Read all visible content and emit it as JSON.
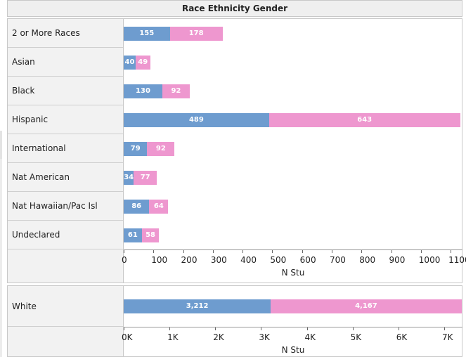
{
  "chart_data": {
    "title": "Race Ethnicity Gender",
    "colors": {
      "series1": "#6e9ccf",
      "series2": "#ee97cf"
    },
    "charts": [
      {
        "type": "bar",
        "orientation": "horizontal",
        "stacked": true,
        "categories": [
          "2 or More Races",
          "Asian",
          "Black",
          "Hispanic",
          "International",
          "Nat American",
          "Nat Hawaiian/Pac Isl",
          "Undeclared"
        ],
        "series": [
          {
            "values": [
              155,
              40,
              130,
              489,
              79,
              34,
              86,
              61
            ]
          },
          {
            "values": [
              178,
              49,
              92,
              643,
              92,
              77,
              64,
              58
            ]
          }
        ],
        "data_labels": [
          [
            "155",
            "40",
            "130",
            "489",
            "79",
            "34",
            "86",
            "61"
          ],
          [
            "178",
            "49",
            "92",
            "643",
            "92",
            "77",
            "64",
            "58"
          ]
        ],
        "xlim": [
          0,
          1140
        ],
        "xticks": [
          0,
          100,
          200,
          300,
          400,
          500,
          600,
          700,
          800,
          900,
          1000,
          1100
        ],
        "xtick_labels": [
          "0",
          "100",
          "200",
          "300",
          "400",
          "500",
          "600",
          "700",
          "800",
          "900",
          "1000",
          "1100"
        ],
        "xlabel": "N Stu"
      },
      {
        "type": "bar",
        "orientation": "horizontal",
        "stacked": true,
        "categories": [
          "White"
        ],
        "series": [
          {
            "values": [
              3212
            ]
          },
          {
            "values": [
              4167
            ]
          }
        ],
        "data_labels": [
          [
            "3,212"
          ],
          [
            "4,167"
          ]
        ],
        "xlim": [
          0,
          7400
        ],
        "xticks": [
          0,
          1000,
          2000,
          3000,
          4000,
          5000,
          6000,
          7000
        ],
        "xtick_labels": [
          "0K",
          "1K",
          "2K",
          "3K",
          "4K",
          "5K",
          "6K",
          "7K"
        ],
        "xlabel": "N Stu"
      }
    ]
  }
}
